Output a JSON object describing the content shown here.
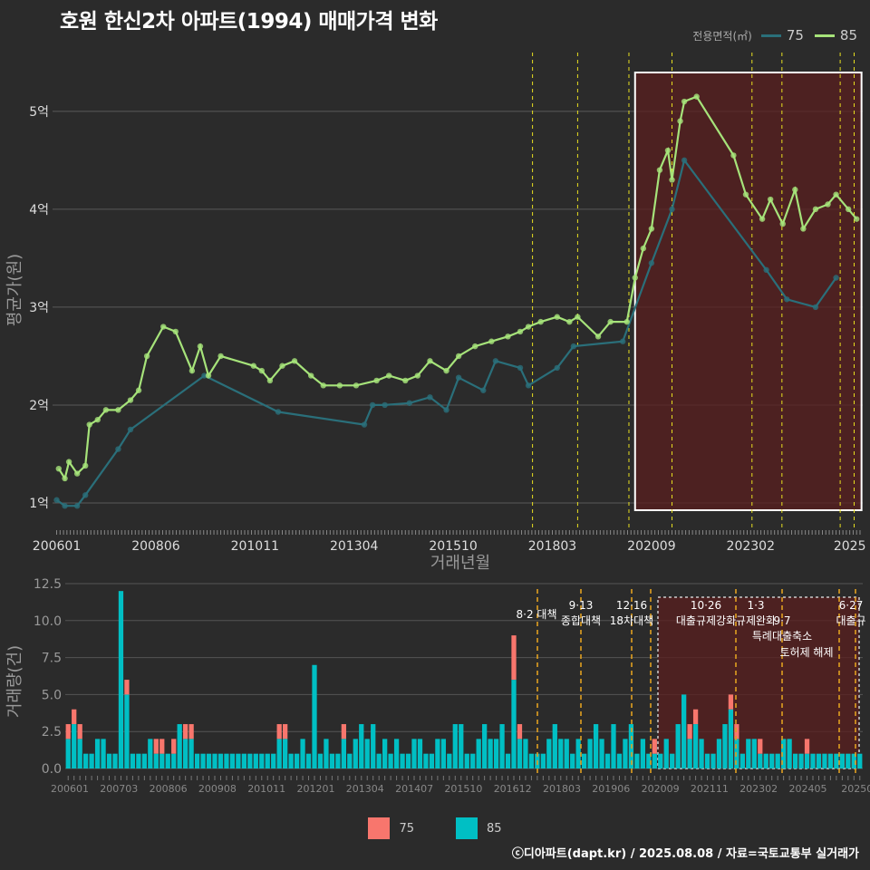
{
  "title": "호원 한신2차 아파트(1994) 매매가격 변화",
  "legend_top": {
    "title": "전용면적(㎡)",
    "items": [
      {
        "label": "75",
        "color": "#2a6f7a"
      },
      {
        "label": "85",
        "color": "#a6e37a"
      }
    ]
  },
  "legend_bottom": {
    "items": [
      {
        "label": "75",
        "color": "#f8766d"
      },
      {
        "label": "85",
        "color": "#00bfc4"
      }
    ]
  },
  "footer": "ⓒ디아파트(dapt.kr) / 2025.08.08 / 자료=국토교통부 실거래가",
  "chart_data": [
    {
      "type": "line",
      "title": "호원 한신2차 아파트(1994) 매매가격 변화",
      "xlabel": "거래년월",
      "ylabel": "평균가(원)",
      "x_tick_labels": [
        "200601",
        "200806",
        "201011",
        "201304",
        "201510",
        "201803",
        "202009",
        "202302",
        "2025"
      ],
      "y_tick_labels": [
        "1억",
        "2억",
        "3억",
        "4억",
        "5억"
      ],
      "ylim_eok": [
        0.75,
        5.6
      ],
      "xlim_year": [
        2005.9,
        2025.65
      ],
      "series": [
        {
          "name": "75",
          "points": [
            [
              2006.0,
              1.03
            ],
            [
              2006.2,
              0.97
            ],
            [
              2006.5,
              0.97
            ],
            [
              2006.7,
              1.08
            ],
            [
              2007.5,
              1.55
            ],
            [
              2007.8,
              1.75
            ],
            [
              2009.6,
              2.3
            ],
            [
              2011.4,
              1.93
            ],
            [
              2013.5,
              1.8
            ],
            [
              2013.7,
              2.0
            ],
            [
              2014.0,
              2.0
            ],
            [
              2014.6,
              2.02
            ],
            [
              2015.1,
              2.08
            ],
            [
              2015.5,
              1.95
            ],
            [
              2015.8,
              2.28
            ],
            [
              2016.4,
              2.15
            ],
            [
              2016.7,
              2.45
            ],
            [
              2017.3,
              2.38
            ],
            [
              2017.5,
              2.2
            ],
            [
              2018.2,
              2.38
            ],
            [
              2018.6,
              2.6
            ],
            [
              2019.8,
              2.65
            ],
            [
              2020.5,
              3.45
            ],
            [
              2021.0,
              4.0
            ],
            [
              2021.3,
              4.5
            ],
            [
              2023.3,
              3.38
            ],
            [
              2023.8,
              3.08
            ],
            [
              2024.5,
              3.0
            ],
            [
              2025.0,
              3.3
            ]
          ]
        },
        {
          "name": "85",
          "points": [
            [
              2006.05,
              1.35
            ],
            [
              2006.2,
              1.25
            ],
            [
              2006.3,
              1.42
            ],
            [
              2006.5,
              1.3
            ],
            [
              2006.7,
              1.38
            ],
            [
              2006.8,
              1.8
            ],
            [
              2007.0,
              1.85
            ],
            [
              2007.2,
              1.95
            ],
            [
              2007.5,
              1.95
            ],
            [
              2007.8,
              2.05
            ],
            [
              2008.0,
              2.15
            ],
            [
              2008.2,
              2.5
            ],
            [
              2008.6,
              2.8
            ],
            [
              2008.9,
              2.75
            ],
            [
              2009.3,
              2.35
            ],
            [
              2009.5,
              2.6
            ],
            [
              2009.7,
              2.3
            ],
            [
              2010.0,
              2.5
            ],
            [
              2010.8,
              2.4
            ],
            [
              2011.0,
              2.35
            ],
            [
              2011.2,
              2.25
            ],
            [
              2011.5,
              2.4
            ],
            [
              2011.8,
              2.45
            ],
            [
              2012.2,
              2.3
            ],
            [
              2012.5,
              2.2
            ],
            [
              2012.9,
              2.2
            ],
            [
              2013.3,
              2.2
            ],
            [
              2013.8,
              2.25
            ],
            [
              2014.1,
              2.3
            ],
            [
              2014.5,
              2.25
            ],
            [
              2014.8,
              2.3
            ],
            [
              2015.1,
              2.45
            ],
            [
              2015.5,
              2.35
            ],
            [
              2015.8,
              2.5
            ],
            [
              2016.2,
              2.6
            ],
            [
              2016.6,
              2.65
            ],
            [
              2017.0,
              2.7
            ],
            [
              2017.3,
              2.75
            ],
            [
              2017.5,
              2.8
            ],
            [
              2017.8,
              2.85
            ],
            [
              2018.2,
              2.9
            ],
            [
              2018.5,
              2.85
            ],
            [
              2018.7,
              2.9
            ],
            [
              2019.2,
              2.7
            ],
            [
              2019.5,
              2.85
            ],
            [
              2019.9,
              2.85
            ],
            [
              2020.1,
              3.3
            ],
            [
              2020.3,
              3.6
            ],
            [
              2020.5,
              3.8
            ],
            [
              2020.7,
              4.4
            ],
            [
              2020.9,
              4.6
            ],
            [
              2021.0,
              4.3
            ],
            [
              2021.2,
              4.9
            ],
            [
              2021.3,
              5.1
            ],
            [
              2021.6,
              5.15
            ],
            [
              2022.5,
              4.55
            ],
            [
              2022.8,
              4.15
            ],
            [
              2023.2,
              3.9
            ],
            [
              2023.4,
              4.1
            ],
            [
              2023.7,
              3.85
            ],
            [
              2024.0,
              4.2
            ],
            [
              2024.2,
              3.8
            ],
            [
              2024.5,
              4.0
            ],
            [
              2024.8,
              4.05
            ],
            [
              2025.0,
              4.15
            ],
            [
              2025.3,
              4.0
            ],
            [
              2025.5,
              3.9
            ]
          ]
        }
      ],
      "policy_lines_year": [
        2017.6,
        2018.7,
        2019.95,
        2021.0,
        2022.95,
        2023.68,
        2025.1,
        2025.44
      ],
      "highlight_range_year": [
        2020.1,
        2025.62
      ]
    },
    {
      "type": "bar",
      "ylabel": "거래량(건)",
      "y_tick_labels": [
        "0.0",
        "2.5",
        "5.0",
        "7.5",
        "10.0",
        "12.5"
      ],
      "ylim": [
        0,
        12.5
      ],
      "x_tick_labels": [
        "200601",
        "200703",
        "200806",
        "200908",
        "201011",
        "201201",
        "201304",
        "201407",
        "201510",
        "201612",
        "201803",
        "201906",
        "202009",
        "202111",
        "202302",
        "202405",
        "20250"
      ],
      "series": [
        {
          "name": "85",
          "values": [
            2,
            3,
            2,
            1,
            1,
            2,
            2,
            1,
            1,
            12,
            5,
            1,
            1,
            1,
            2,
            1,
            1,
            1,
            1,
            3,
            2,
            2,
            1,
            1,
            1,
            1,
            1,
            1,
            1,
            1,
            1,
            1,
            1,
            1,
            1,
            1,
            2,
            2,
            1,
            1,
            2,
            1,
            7,
            1,
            2,
            1,
            1,
            2,
            1,
            2,
            3,
            2,
            3,
            1,
            2,
            1,
            2,
            1,
            1,
            2,
            2,
            1,
            1,
            2,
            2,
            1,
            3,
            3,
            1,
            1,
            2,
            3,
            2,
            2,
            3,
            1,
            6,
            2,
            2,
            1,
            1,
            1,
            2,
            3,
            2,
            2,
            1,
            2,
            1,
            2,
            3,
            2,
            1,
            3,
            1,
            2,
            3,
            1,
            2,
            1,
            1,
            1,
            2,
            1,
            3,
            5,
            2,
            3,
            2,
            1,
            1,
            2,
            3,
            4,
            2,
            1,
            2,
            2,
            1,
            1,
            1,
            1,
            2,
            2,
            1,
            1,
            1,
            1,
            1,
            1,
            1,
            1,
            1,
            1,
            1,
            1
          ]
        },
        {
          "name": "75",
          "values": [
            1,
            1,
            1,
            0,
            0,
            0,
            0,
            0,
            0,
            0,
            1,
            0,
            0,
            0,
            0,
            1,
            1,
            0,
            1,
            0,
            1,
            1,
            0,
            0,
            0,
            0,
            0,
            0,
            0,
            0,
            0,
            0,
            0,
            0,
            0,
            0,
            1,
            1,
            0,
            0,
            0,
            0,
            0,
            0,
            0,
            0,
            0,
            1,
            0,
            0,
            0,
            0,
            0,
            0,
            0,
            0,
            0,
            0,
            0,
            0,
            0,
            0,
            0,
            0,
            0,
            0,
            0,
            0,
            0,
            0,
            0,
            0,
            0,
            0,
            0,
            0,
            3,
            1,
            0,
            0,
            0,
            0,
            0,
            0,
            0,
            0,
            0,
            0,
            0,
            0,
            0,
            0,
            0,
            0,
            0,
            0,
            0,
            0,
            0,
            0,
            1,
            0,
            0,
            0,
            0,
            0,
            1,
            1,
            0,
            0,
            0,
            0,
            0,
            1,
            1,
            0,
            0,
            0,
            1,
            0,
            0,
            0,
            0,
            0,
            0,
            0,
            1,
            0,
            0,
            0,
            0,
            0,
            0,
            0,
            0,
            0
          ]
        }
      ],
      "annotations": [
        {
          "date": "8·2 대책",
          "label": ""
        },
        {
          "date": "9·13",
          "label": "종합대책"
        },
        {
          "date": "12·16",
          "label": "18차대책"
        },
        {
          "date": "10·26",
          "label": "대출규제강화"
        },
        {
          "date": "1·3",
          "label": "규제완화"
        },
        {
          "date": "9·7",
          "label": "특례대출축소"
        },
        {
          "date": "",
          "label": "토허제 해제"
        },
        {
          "date": "6·27",
          "label": "대출규"
        }
      ]
    }
  ]
}
